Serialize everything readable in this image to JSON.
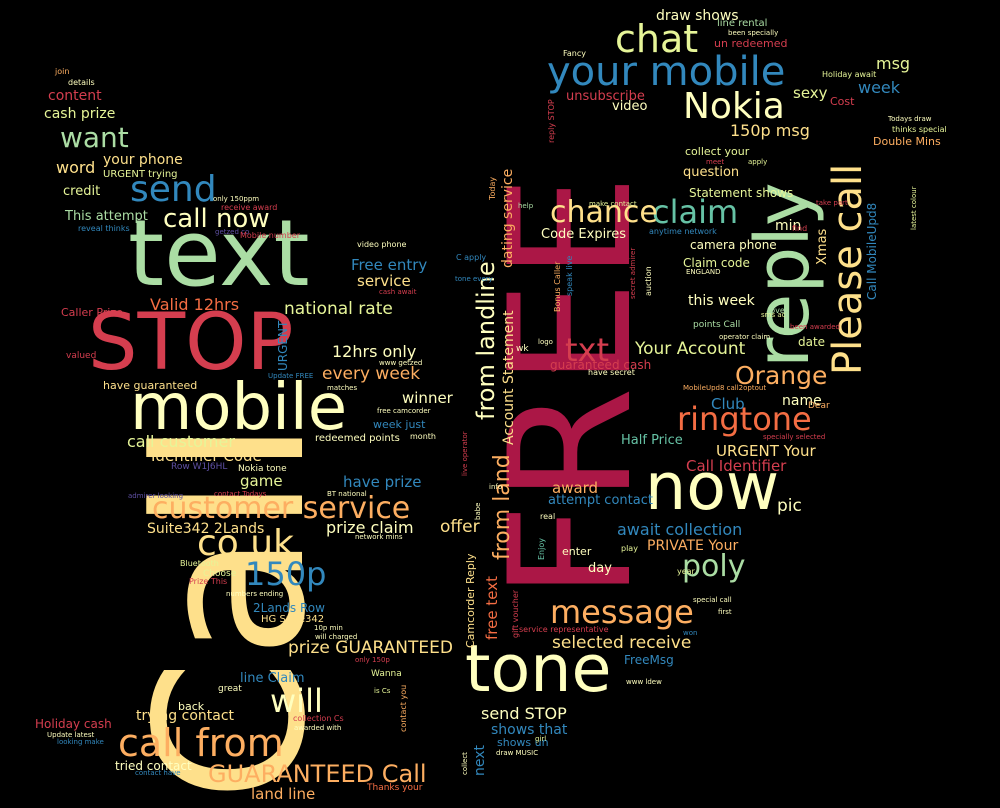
{
  "palette": {
    "crimson": "#ab1746",
    "red": "#d53e4f",
    "orange": "#f46d43",
    "amber": "#fdae61",
    "yellow": "#fee08b",
    "cream": "#ffffbf",
    "lime": "#e6f598",
    "green": "#abdda4",
    "teal": "#66c2a5",
    "blue": "#3288bd",
    "indigo": "#5e4fa2"
  },
  "words": [
    {
      "id": "call",
      "text": "Call"
    },
    {
      "id": "free",
      "text": "FREE"
    },
    {
      "id": "text",
      "text": "text"
    },
    {
      "id": "stop",
      "text": "STOP"
    },
    {
      "id": "mobile",
      "text": "mobile"
    },
    {
      "id": "now",
      "text": "now"
    },
    {
      "id": "tone",
      "text": "tone"
    },
    {
      "id": "reply",
      "text": "reply"
    },
    {
      "id": "your_mobile",
      "text": "your mobile"
    },
    {
      "id": "please_call",
      "text": "Please call"
    },
    {
      "id": "chat",
      "text": "chat"
    },
    {
      "id": "nokia",
      "text": "Nokia"
    },
    {
      "id": "call_from",
      "text": "call from"
    },
    {
      "id": "customer_service",
      "text": "customer service"
    },
    {
      "id": "co_uk",
      "text": "co uk"
    },
    {
      "id": "send",
      "text": "send"
    },
    {
      "id": "message",
      "text": "message"
    },
    {
      "id": "ringtone",
      "text": "ringtone"
    },
    {
      "id": "claim",
      "text": "claim"
    },
    {
      "id": "chance",
      "text": "chance"
    },
    {
      "id": "want",
      "text": "want"
    },
    {
      "id": "call_now",
      "text": "call now"
    },
    {
      "id": "txt",
      "text": "txt"
    },
    {
      "id": "poly",
      "text": "poly"
    },
    {
      "id": "150p",
      "text": "150p"
    },
    {
      "id": "orange",
      "text": "Orange"
    },
    {
      "id": "will",
      "text": "will"
    },
    {
      "id": "guaranteed_call",
      "text": "GUARANTEED Call"
    },
    {
      "id": "from_landline",
      "text": "from landline"
    },
    {
      "id": "from_land",
      "text": "from land"
    },
    {
      "id": "msg",
      "text": "msg"
    },
    {
      "id": "week",
      "text": "week"
    },
    {
      "id": "sexy",
      "text": "sexy"
    },
    {
      "id": "150p_msg",
      "text": "150p msg"
    },
    {
      "id": "draw_shows",
      "text": "draw shows"
    },
    {
      "id": "un_redeemed",
      "text": "un redeemed"
    },
    {
      "id": "unsubscribe",
      "text": "unsubscribe"
    },
    {
      "id": "video",
      "text": "video"
    },
    {
      "id": "cash_prize",
      "text": "cash prize"
    },
    {
      "id": "content",
      "text": "content"
    },
    {
      "id": "word",
      "text": "word"
    },
    {
      "id": "your_phone",
      "text": "your phone"
    },
    {
      "id": "urgent_trying",
      "text": "URGENT trying"
    },
    {
      "id": "credit",
      "text": "credit"
    },
    {
      "id": "this_attempt",
      "text": "This attempt"
    },
    {
      "id": "free_entry",
      "text": "Free entry"
    },
    {
      "id": "service",
      "text": "service"
    },
    {
      "id": "valid_12hrs",
      "text": "Valid 12hrs"
    },
    {
      "id": "national_rate",
      "text": "national rate"
    },
    {
      "id": "12hrs_only",
      "text": "12hrs only"
    },
    {
      "id": "every_week",
      "text": "every week"
    },
    {
      "id": "winner",
      "text": "winner"
    },
    {
      "id": "call_customer",
      "text": "call customer"
    },
    {
      "id": "identifier_code",
      "text": "Identifier Code"
    },
    {
      "id": "game",
      "text": "game"
    },
    {
      "id": "have_prize",
      "text": "have prize"
    },
    {
      "id": "suite342",
      "text": "Suite342 2Lands"
    },
    {
      "id": "prize_claim",
      "text": "prize claim"
    },
    {
      "id": "offer",
      "text": "offer"
    },
    {
      "id": "prize_guaranteed",
      "text": "prize GUARANTEED"
    },
    {
      "id": "selected_receive",
      "text": "selected receive"
    },
    {
      "id": "send_stop",
      "text": "send STOP"
    },
    {
      "id": "shows_that",
      "text": "shows that"
    },
    {
      "id": "land_line",
      "text": "land line"
    },
    {
      "id": "line_claim",
      "text": "line Claim"
    },
    {
      "id": "trying_contact",
      "text": "trying contact"
    },
    {
      "id": "back",
      "text": "back"
    },
    {
      "id": "code_expires",
      "text": "Code Expires"
    },
    {
      "id": "your_account",
      "text": "Your Account"
    },
    {
      "id": "urgent_your",
      "text": "URGENT Your"
    },
    {
      "id": "call_identifier",
      "text": "Call Identifier"
    },
    {
      "id": "award",
      "text": "award"
    },
    {
      "id": "attempt_contact",
      "text": "attempt contact"
    },
    {
      "id": "await_collection",
      "text": "await collection"
    },
    {
      "id": "private_your",
      "text": "PRIVATE Your"
    },
    {
      "id": "club",
      "text": "Club"
    },
    {
      "id": "half_price",
      "text": "Half Price"
    },
    {
      "id": "pic",
      "text": "pic"
    },
    {
      "id": "name",
      "text": "name"
    },
    {
      "id": "this_week",
      "text": "this week"
    },
    {
      "id": "camera_phone",
      "text": "camera phone"
    },
    {
      "id": "claim_code",
      "text": "Claim code"
    },
    {
      "id": "min",
      "text": "min"
    },
    {
      "id": "xmas",
      "text": "Xmas"
    },
    {
      "id": "question",
      "text": "question"
    },
    {
      "id": "collect_your",
      "text": "collect your"
    },
    {
      "id": "statement_shows",
      "text": "Statement shows"
    },
    {
      "id": "call_mobileupd8",
      "text": "Call MobileUpd8"
    },
    {
      "id": "account_statement",
      "text": "Account Statement"
    },
    {
      "id": "dating_service",
      "text": "dating service"
    },
    {
      "id": "free_text",
      "text": "free text"
    },
    {
      "id": "next",
      "text": "next"
    },
    {
      "id": "camcorder_reply",
      "text": "Camcorder Reply"
    },
    {
      "id": "guaranteed_cash",
      "text": "guaranteed cash"
    },
    {
      "id": "date",
      "text": "date"
    },
    {
      "id": "day",
      "text": "day"
    },
    {
      "id": "enter",
      "text": "enter"
    },
    {
      "id": "freemsg",
      "text": "FreeMsg"
    },
    {
      "id": "urgent_v",
      "text": "URGENT"
    },
    {
      "id": "caller_prize",
      "text": "Caller Prize"
    },
    {
      "id": "have_guaranteed",
      "text": "have guaranteed"
    },
    {
      "id": "valued",
      "text": "valued"
    },
    {
      "id": "holiday_cash",
      "text": "Holiday cash"
    },
    {
      "id": "tried_contact",
      "text": "tried contact"
    },
    {
      "id": "shows_un",
      "text": "shows un"
    },
    {
      "id": "week_just",
      "text": "week just"
    },
    {
      "id": "redeemed_points",
      "text": "redeemed points"
    },
    {
      "id": "2lands_row",
      "text": "2Lands Row"
    },
    {
      "id": "hg_suite342",
      "text": "HG Suite342"
    },
    {
      "id": "nokia_tone",
      "text": "Nokia tone"
    },
    {
      "id": "row_w1j6hl",
      "text": "Row W1J6HL"
    },
    {
      "id": "wanna",
      "text": "Wanna"
    },
    {
      "id": "great",
      "text": "great"
    },
    {
      "id": "thanks_your",
      "text": "Thanks your"
    },
    {
      "id": "double_mins",
      "text": "Double Mins"
    },
    {
      "id": "cost",
      "text": "Cost"
    },
    {
      "id": "holiday_await",
      "text": "Holiday await"
    },
    {
      "id": "line_rental",
      "text": "line rental"
    },
    {
      "id": "fancy",
      "text": "Fancy"
    },
    {
      "id": "join",
      "text": "join"
    },
    {
      "id": "details",
      "text": "details"
    },
    {
      "id": "only_150ppm",
      "text": "only 150ppm"
    },
    {
      "id": "receive_award",
      "text": "receive award"
    },
    {
      "id": "getzed_co",
      "text": "getzed co"
    },
    {
      "id": "reveal_thinks",
      "text": "reveal thinks"
    },
    {
      "id": "mobile_number",
      "text": "Mobile number"
    },
    {
      "id": "video_phone",
      "text": "video phone"
    },
    {
      "id": "c_apply",
      "text": "C apply"
    },
    {
      "id": "bluetooth",
      "text": "Bluetooth"
    },
    {
      "id": "choose",
      "text": "Choose"
    },
    {
      "id": "prize_this",
      "text": "Prize This"
    },
    {
      "id": "numbers_ending",
      "text": "numbers ending"
    },
    {
      "id": "admirer_looking",
      "text": "admirer looking"
    },
    {
      "id": "thinks_special",
      "text": "thinks special"
    },
    {
      "id": "todays_draw",
      "text": "Todays draw"
    },
    {
      "id": "latest_colour",
      "text": "latest colour"
    },
    {
      "id": "been_specially",
      "text": "been specially"
    },
    {
      "id": "special_call",
      "text": "special call"
    },
    {
      "id": "first",
      "text": "first"
    },
    {
      "id": "www_ldew",
      "text": "www ldew"
    },
    {
      "id": "year",
      "text": "year"
    },
    {
      "id": "play",
      "text": "play"
    },
    {
      "id": "won",
      "text": "won"
    },
    {
      "id": "dear",
      "text": "Dear"
    },
    {
      "id": "specially_selected",
      "text": "specially selected"
    },
    {
      "id": "mobileupd8_call",
      "text": "MobileUpd8 call2optout"
    },
    {
      "id": "been_awarded",
      "text": "been awarded"
    },
    {
      "id": "operator_claim",
      "text": "operator claim"
    },
    {
      "id": "points_call",
      "text": "points Call"
    },
    {
      "id": "love",
      "text": "love"
    },
    {
      "id": "sms_ac",
      "text": "sms ac"
    },
    {
      "id": "england",
      "text": "ENGLAND"
    },
    {
      "id": "anytime_network",
      "text": "anytime network"
    },
    {
      "id": "make_contact",
      "text": "make contact"
    },
    {
      "id": "help",
      "text": "help"
    },
    {
      "id": "take_part",
      "text": "take part"
    },
    {
      "id": "find",
      "text": "find"
    },
    {
      "id": "meet",
      "text": "meet"
    },
    {
      "id": "apply",
      "text": "apply"
    },
    {
      "id": "bonus_caller",
      "text": "Bonus Caller"
    },
    {
      "id": "speak_live",
      "text": "speak live"
    },
    {
      "id": "secret_admirer",
      "text": "secret admirer"
    },
    {
      "id": "auction",
      "text": "auction"
    },
    {
      "id": "have_secret",
      "text": "have secret"
    },
    {
      "id": "logo",
      "text": "logo"
    },
    {
      "id": "wk",
      "text": "wk"
    },
    {
      "id": "today",
      "text": "Today"
    },
    {
      "id": "reply_stop",
      "text": "reply STOP"
    },
    {
      "id": "real",
      "text": "real"
    },
    {
      "id": "enjoy",
      "text": "Enjoy"
    },
    {
      "id": "gift_voucher",
      "text": "gift voucher"
    },
    {
      "id": "service_rep",
      "text": "service representative"
    },
    {
      "id": "network_mins",
      "text": "network mins"
    },
    {
      "id": "bt_national",
      "text": "BT national"
    },
    {
      "id": "contact_todays",
      "text": "contact Todays"
    },
    {
      "id": "free_camcorder",
      "text": "free camcorder"
    },
    {
      "id": "month",
      "text": "month"
    },
    {
      "id": "matches",
      "text": "matches"
    },
    {
      "id": "update_free",
      "text": "Update FREE"
    },
    {
      "id": "www_getzed",
      "text": "www getzed"
    },
    {
      "id": "cash_await",
      "text": "cash await"
    },
    {
      "id": "tone_every",
      "text": "tone every"
    },
    {
      "id": "live_operator",
      "text": "live operator"
    },
    {
      "id": "babe",
      "text": "babe"
    },
    {
      "id": "info",
      "text": "info"
    },
    {
      "id": "10p_min",
      "text": "10p min"
    },
    {
      "id": "will_charged",
      "text": "will charged"
    },
    {
      "id": "only_150p",
      "text": "only 150p"
    },
    {
      "id": "is_cs",
      "text": "is Cs"
    },
    {
      "id": "contact_you",
      "text": "contact you"
    },
    {
      "id": "collection_cs",
      "text": "collection Cs"
    },
    {
      "id": "awarded_with",
      "text": "awarded with"
    },
    {
      "id": "update_latest",
      "text": "Update latest"
    },
    {
      "id": "looking_make",
      "text": "looking make"
    },
    {
      "id": "contact_have",
      "text": "contact have"
    },
    {
      "id": "collect",
      "text": "collect"
    },
    {
      "id": "draw_music",
      "text": "draw MUSIC"
    },
    {
      "id": "girl",
      "text": "girl"
    }
  ]
}
